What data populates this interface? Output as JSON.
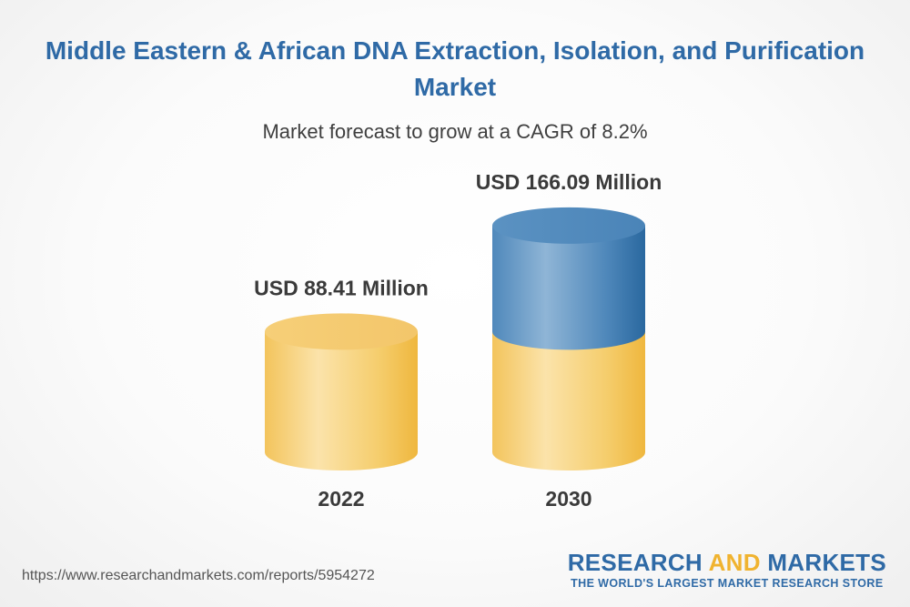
{
  "chart_data": {
    "type": "bar",
    "title": "Middle Eastern & African DNA Extraction, Isolation, and Purification Market",
    "subtitle": "Market forecast to grow at a CAGR of 8.2%",
    "categories": [
      "2022",
      "2030"
    ],
    "values": [
      88.41,
      166.09
    ],
    "value_labels": [
      "USD 88.41 Million",
      "USD 166.09 Million"
    ],
    "unit": "USD Million",
    "colors": {
      "base": "#f0c05a",
      "growth": "#3f7bb0"
    }
  },
  "footer": {
    "url": "https://www.researchandmarkets.com/reports/5954272"
  },
  "brand": {
    "name_part1": "RESEARCH ",
    "name_part2": "AND",
    "name_part3": " MARKETS",
    "tagline": "THE WORLD'S LARGEST MARKET RESEARCH STORE"
  }
}
